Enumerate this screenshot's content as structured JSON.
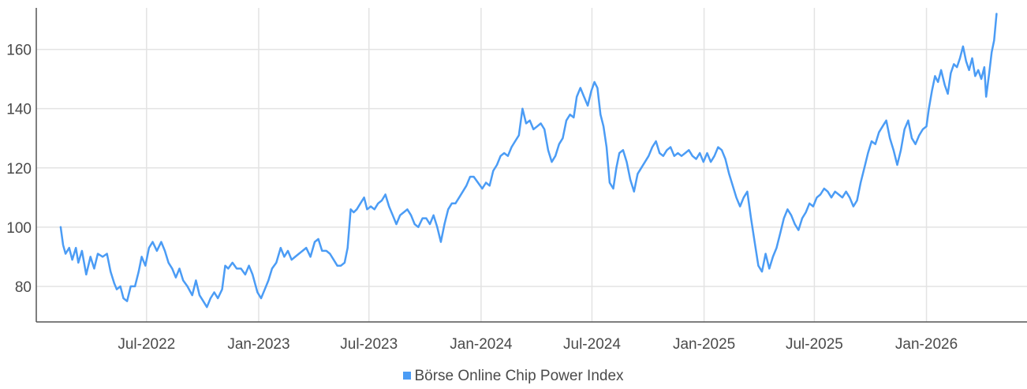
{
  "chart_data": {
    "type": "line",
    "x_axis": {
      "type": "date",
      "range": [
        "2022-01-01",
        "2026-06-15"
      ],
      "ticks": [
        {
          "date": "2022-07-01",
          "label": "Jul-2022"
        },
        {
          "date": "2023-01-01",
          "label": "Jan-2023"
        },
        {
          "date": "2023-07-01",
          "label": "Jul-2023"
        },
        {
          "date": "2024-01-01",
          "label": "Jan-2024"
        },
        {
          "date": "2024-07-01",
          "label": "Jul-2024"
        },
        {
          "date": "2025-01-01",
          "label": "Jan-2025"
        },
        {
          "date": "2025-07-01",
          "label": "Jul-2025"
        },
        {
          "date": "2026-01-01",
          "label": "Jan-2026"
        }
      ]
    },
    "y_axis": {
      "range": [
        68,
        174
      ],
      "ticks": [
        {
          "value": 80,
          "label": "80"
        },
        {
          "value": 100,
          "label": "100"
        },
        {
          "value": 120,
          "label": "120"
        },
        {
          "value": 140,
          "label": "140"
        },
        {
          "value": 160,
          "label": "160"
        }
      ]
    },
    "grid": true,
    "legend_position": "bottom-center",
    "series": [
      {
        "name": "Börse Online Chip Power Index",
        "color": "#4b9cf5",
        "points": [
          [
            "2022-02-10",
            100
          ],
          [
            "2022-02-14",
            94
          ],
          [
            "2022-02-18",
            91
          ],
          [
            "2022-02-24",
            93
          ],
          [
            "2022-03-01",
            89
          ],
          [
            "2022-03-07",
            93
          ],
          [
            "2022-03-11",
            88
          ],
          [
            "2022-03-17",
            92
          ],
          [
            "2022-03-24",
            84
          ],
          [
            "2022-03-31",
            90
          ],
          [
            "2022-04-06",
            86
          ],
          [
            "2022-04-12",
            91
          ],
          [
            "2022-04-20",
            90
          ],
          [
            "2022-04-27",
            91
          ],
          [
            "2022-05-03",
            85
          ],
          [
            "2022-05-09",
            81
          ],
          [
            "2022-05-13",
            79
          ],
          [
            "2022-05-19",
            80
          ],
          [
            "2022-05-24",
            76
          ],
          [
            "2022-05-30",
            75
          ],
          [
            "2022-06-05",
            80
          ],
          [
            "2022-06-12",
            80
          ],
          [
            "2022-06-18",
            85
          ],
          [
            "2022-06-23",
            90
          ],
          [
            "2022-06-29",
            87
          ],
          [
            "2022-07-05",
            93
          ],
          [
            "2022-07-11",
            95
          ],
          [
            "2022-07-18",
            92
          ],
          [
            "2022-07-25",
            95
          ],
          [
            "2022-07-31",
            92
          ],
          [
            "2022-08-06",
            88
          ],
          [
            "2022-08-12",
            86
          ],
          [
            "2022-08-18",
            83
          ],
          [
            "2022-08-24",
            86
          ],
          [
            "2022-08-30",
            82
          ],
          [
            "2022-09-06",
            80
          ],
          [
            "2022-09-14",
            77
          ],
          [
            "2022-09-20",
            82
          ],
          [
            "2022-09-26",
            77
          ],
          [
            "2022-10-02",
            75
          ],
          [
            "2022-10-08",
            73
          ],
          [
            "2022-10-14",
            76
          ],
          [
            "2022-10-20",
            78
          ],
          [
            "2022-10-26",
            76
          ],
          [
            "2022-11-02",
            79
          ],
          [
            "2022-11-07",
            87
          ],
          [
            "2022-11-12",
            86
          ],
          [
            "2022-11-19",
            88
          ],
          [
            "2022-11-26",
            86
          ],
          [
            "2022-12-03",
            86
          ],
          [
            "2022-12-10",
            84
          ],
          [
            "2022-12-16",
            87
          ],
          [
            "2022-12-22",
            84
          ],
          [
            "2022-12-30",
            78
          ],
          [
            "2023-01-05",
            76
          ],
          [
            "2023-01-11",
            79
          ],
          [
            "2023-01-17",
            82
          ],
          [
            "2023-01-23",
            86
          ],
          [
            "2023-01-30",
            88
          ],
          [
            "2023-02-06",
            93
          ],
          [
            "2023-02-12",
            90
          ],
          [
            "2023-02-18",
            92
          ],
          [
            "2023-02-24",
            89
          ],
          [
            "2023-03-02",
            90
          ],
          [
            "2023-03-08",
            91
          ],
          [
            "2023-03-14",
            92
          ],
          [
            "2023-03-20",
            93
          ],
          [
            "2023-03-27",
            90
          ],
          [
            "2023-04-03",
            95
          ],
          [
            "2023-04-09",
            96
          ],
          [
            "2023-04-15",
            92
          ],
          [
            "2023-04-22",
            92
          ],
          [
            "2023-04-28",
            91
          ],
          [
            "2023-05-04",
            89
          ],
          [
            "2023-05-10",
            87
          ],
          [
            "2023-05-16",
            87
          ],
          [
            "2023-05-22",
            88
          ],
          [
            "2023-05-27",
            93
          ],
          [
            "2023-06-01",
            106
          ],
          [
            "2023-06-06",
            105
          ],
          [
            "2023-06-11",
            106
          ],
          [
            "2023-06-17",
            108
          ],
          [
            "2023-06-23",
            110
          ],
          [
            "2023-06-28",
            106
          ],
          [
            "2023-07-04",
            107
          ],
          [
            "2023-07-10",
            106
          ],
          [
            "2023-07-16",
            108
          ],
          [
            "2023-07-22",
            109
          ],
          [
            "2023-07-28",
            111
          ],
          [
            "2023-08-03",
            107
          ],
          [
            "2023-08-09",
            104
          ],
          [
            "2023-08-15",
            101
          ],
          [
            "2023-08-21",
            104
          ],
          [
            "2023-08-27",
            105
          ],
          [
            "2023-09-02",
            106
          ],
          [
            "2023-09-08",
            104
          ],
          [
            "2023-09-14",
            101
          ],
          [
            "2023-09-20",
            100
          ],
          [
            "2023-09-27",
            103
          ],
          [
            "2023-10-03",
            103
          ],
          [
            "2023-10-09",
            101
          ],
          [
            "2023-10-15",
            104
          ],
          [
            "2023-10-21",
            100
          ],
          [
            "2023-10-27",
            95
          ],
          [
            "2023-11-02",
            101
          ],
          [
            "2023-11-08",
            106
          ],
          [
            "2023-11-14",
            108
          ],
          [
            "2023-11-20",
            108
          ],
          [
            "2023-11-26",
            110
          ],
          [
            "2023-12-02",
            112
          ],
          [
            "2023-12-08",
            114
          ],
          [
            "2023-12-14",
            117
          ],
          [
            "2023-12-20",
            117
          ],
          [
            "2023-12-27",
            115
          ],
          [
            "2024-01-03",
            113
          ],
          [
            "2024-01-09",
            115
          ],
          [
            "2024-01-15",
            114
          ],
          [
            "2024-01-21",
            119
          ],
          [
            "2024-01-27",
            121
          ],
          [
            "2024-02-02",
            124
          ],
          [
            "2024-02-08",
            125
          ],
          [
            "2024-02-14",
            124
          ],
          [
            "2024-02-20",
            127
          ],
          [
            "2024-02-26",
            129
          ],
          [
            "2024-03-03",
            131
          ],
          [
            "2024-03-09",
            140
          ],
          [
            "2024-03-15",
            135
          ],
          [
            "2024-03-21",
            136
          ],
          [
            "2024-03-27",
            133
          ],
          [
            "2024-04-02",
            134
          ],
          [
            "2024-04-08",
            135
          ],
          [
            "2024-04-14",
            133
          ],
          [
            "2024-04-20",
            126
          ],
          [
            "2024-04-26",
            122
          ],
          [
            "2024-05-02",
            124
          ],
          [
            "2024-05-08",
            128
          ],
          [
            "2024-05-14",
            130
          ],
          [
            "2024-05-20",
            136
          ],
          [
            "2024-05-26",
            138
          ],
          [
            "2024-06-01",
            137
          ],
          [
            "2024-06-06",
            144
          ],
          [
            "2024-06-12",
            147
          ],
          [
            "2024-06-18",
            144
          ],
          [
            "2024-06-24",
            141
          ],
          [
            "2024-06-30",
            146
          ],
          [
            "2024-07-05",
            149
          ],
          [
            "2024-07-10",
            147
          ],
          [
            "2024-07-15",
            138
          ],
          [
            "2024-07-20",
            134
          ],
          [
            "2024-07-25",
            127
          ],
          [
            "2024-07-30",
            115
          ],
          [
            "2024-08-05",
            113
          ],
          [
            "2024-08-10",
            120
          ],
          [
            "2024-08-15",
            125
          ],
          [
            "2024-08-21",
            126
          ],
          [
            "2024-08-27",
            122
          ],
          [
            "2024-09-02",
            116
          ],
          [
            "2024-09-08",
            112
          ],
          [
            "2024-09-14",
            118
          ],
          [
            "2024-09-20",
            120
          ],
          [
            "2024-09-26",
            122
          ],
          [
            "2024-10-02",
            124
          ],
          [
            "2024-10-08",
            127
          ],
          [
            "2024-10-14",
            129
          ],
          [
            "2024-10-20",
            125
          ],
          [
            "2024-10-26",
            124
          ],
          [
            "2024-11-01",
            126
          ],
          [
            "2024-11-07",
            127
          ],
          [
            "2024-11-13",
            124
          ],
          [
            "2024-11-19",
            125
          ],
          [
            "2024-11-25",
            124
          ],
          [
            "2024-12-01",
            125
          ],
          [
            "2024-12-07",
            126
          ],
          [
            "2024-12-13",
            124
          ],
          [
            "2024-12-19",
            123
          ],
          [
            "2024-12-25",
            125
          ],
          [
            "2024-12-31",
            122
          ],
          [
            "2025-01-06",
            125
          ],
          [
            "2025-01-12",
            122
          ],
          [
            "2025-01-18",
            124
          ],
          [
            "2025-01-24",
            127
          ],
          [
            "2025-01-30",
            126
          ],
          [
            "2025-02-05",
            123
          ],
          [
            "2025-02-11",
            118
          ],
          [
            "2025-02-17",
            114
          ],
          [
            "2025-02-23",
            110
          ],
          [
            "2025-03-01",
            107
          ],
          [
            "2025-03-07",
            110
          ],
          [
            "2025-03-13",
            112
          ],
          [
            "2025-03-19",
            103
          ],
          [
            "2025-03-25",
            95
          ],
          [
            "2025-03-31",
            87
          ],
          [
            "2025-04-06",
            85
          ],
          [
            "2025-04-12",
            91
          ],
          [
            "2025-04-18",
            86
          ],
          [
            "2025-04-24",
            90
          ],
          [
            "2025-04-30",
            93
          ],
          [
            "2025-05-06",
            98
          ],
          [
            "2025-05-12",
            103
          ],
          [
            "2025-05-18",
            106
          ],
          [
            "2025-05-24",
            104
          ],
          [
            "2025-05-30",
            101
          ],
          [
            "2025-06-05",
            99
          ],
          [
            "2025-06-11",
            103
          ],
          [
            "2025-06-17",
            105
          ],
          [
            "2025-06-23",
            108
          ],
          [
            "2025-06-29",
            107
          ],
          [
            "2025-07-05",
            110
          ],
          [
            "2025-07-11",
            111
          ],
          [
            "2025-07-17",
            113
          ],
          [
            "2025-07-23",
            112
          ],
          [
            "2025-07-29",
            110
          ],
          [
            "2025-08-04",
            112
          ],
          [
            "2025-08-10",
            111
          ],
          [
            "2025-08-16",
            110
          ],
          [
            "2025-08-22",
            112
          ],
          [
            "2025-08-28",
            110
          ],
          [
            "2025-09-03",
            107
          ],
          [
            "2025-09-09",
            109
          ],
          [
            "2025-09-15",
            115
          ],
          [
            "2025-09-21",
            120
          ],
          [
            "2025-09-27",
            125
          ],
          [
            "2025-10-03",
            129
          ],
          [
            "2025-10-09",
            128
          ],
          [
            "2025-10-15",
            132
          ],
          [
            "2025-10-21",
            134
          ],
          [
            "2025-10-27",
            136
          ],
          [
            "2025-11-02",
            130
          ],
          [
            "2025-11-08",
            126
          ],
          [
            "2025-11-14",
            121
          ],
          [
            "2025-11-20",
            126
          ],
          [
            "2025-11-26",
            133
          ],
          [
            "2025-12-02",
            136
          ],
          [
            "2025-12-08",
            130
          ],
          [
            "2025-12-14",
            128
          ],
          [
            "2025-12-20",
            131
          ],
          [
            "2025-12-26",
            133
          ],
          [
            "2026-01-01",
            134
          ],
          [
            "2026-01-05",
            140
          ],
          [
            "2026-01-10",
            146
          ],
          [
            "2026-01-15",
            151
          ],
          [
            "2026-01-20",
            149
          ],
          [
            "2026-01-25",
            153
          ],
          [
            "2026-01-31",
            148
          ],
          [
            "2026-02-05",
            145
          ],
          [
            "2026-02-10",
            152
          ],
          [
            "2026-02-15",
            155
          ],
          [
            "2026-02-20",
            154
          ],
          [
            "2026-02-25",
            157
          ],
          [
            "2026-03-02",
            161
          ],
          [
            "2026-03-07",
            156
          ],
          [
            "2026-03-12",
            153
          ],
          [
            "2026-03-17",
            157
          ],
          [
            "2026-03-22",
            151
          ],
          [
            "2026-03-27",
            153
          ],
          [
            "2026-04-01",
            150
          ],
          [
            "2026-04-06",
            154
          ],
          [
            "2026-04-09",
            144
          ],
          [
            "2026-04-14",
            152
          ],
          [
            "2026-04-18",
            159
          ],
          [
            "2026-04-22",
            163
          ],
          [
            "2026-04-26",
            172
          ]
        ]
      }
    ]
  }
}
